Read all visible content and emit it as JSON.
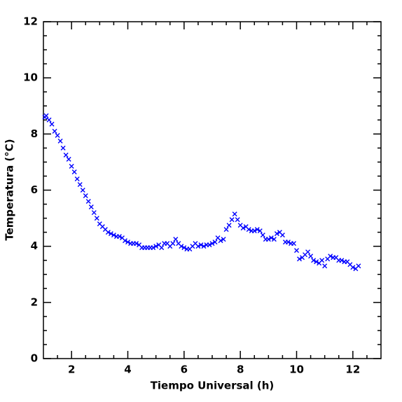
{
  "chart_data": {
    "type": "scatter",
    "xlabel": "Tiempo Universal (h)",
    "ylabel": "Temperatura (°C)",
    "xlim": [
      1,
      13
    ],
    "ylim": [
      0,
      12
    ],
    "xticks": [
      2,
      4,
      6,
      8,
      10,
      12
    ],
    "yticks": [
      0,
      2,
      4,
      6,
      8,
      10,
      12
    ],
    "xminorticks": [
      1.5,
      2.5,
      3,
      3.5,
      4.5,
      5,
      5.5,
      6.5,
      7,
      7.5,
      8.5,
      9,
      9.5,
      10.5,
      11,
      11.5,
      12.5
    ],
    "yminorticks": [
      0.5,
      1,
      1.5,
      2.5,
      3,
      3.5,
      4.5,
      5,
      5.5,
      6.5,
      7,
      7.5,
      8.5,
      9,
      9.5,
      10.5,
      11,
      11.5
    ],
    "grid": false,
    "series": [
      {
        "color": "#0000ff",
        "x": [
          1.05,
          1.1,
          1.2,
          1.3,
          1.4,
          1.5,
          1.6,
          1.7,
          1.8,
          1.9,
          2.0,
          2.1,
          2.2,
          2.3,
          2.4,
          2.5,
          2.6,
          2.7,
          2.8,
          2.9,
          3.0,
          3.1,
          3.2,
          3.3,
          3.4,
          3.5,
          3.6,
          3.7,
          3.8,
          3.9,
          4.0,
          4.1,
          4.2,
          4.3,
          4.4,
          4.5,
          4.6,
          4.7,
          4.8,
          4.9,
          5.0,
          5.1,
          5.2,
          5.3,
          5.4,
          5.5,
          5.6,
          5.7,
          5.8,
          5.9,
          6.0,
          6.1,
          6.2,
          6.3,
          6.4,
          6.5,
          6.6,
          6.7,
          6.8,
          6.9,
          7.0,
          7.1,
          7.2,
          7.3,
          7.4,
          7.5,
          7.6,
          7.7,
          7.8,
          7.9,
          8.0,
          8.1,
          8.2,
          8.3,
          8.4,
          8.5,
          8.6,
          8.7,
          8.8,
          8.9,
          9.0,
          9.1,
          9.2,
          9.3,
          9.4,
          9.5,
          9.6,
          9.7,
          9.8,
          9.9,
          10.0,
          10.1,
          10.2,
          10.3,
          10.4,
          10.5,
          10.6,
          10.7,
          10.8,
          10.9,
          11.0,
          11.1,
          11.2,
          11.3,
          11.4,
          11.5,
          11.6,
          11.7,
          11.8,
          11.9,
          12.0,
          12.1,
          12.2
        ],
        "values": [
          8.6,
          8.65,
          8.5,
          8.35,
          8.1,
          7.95,
          7.75,
          7.5,
          7.25,
          7.1,
          6.85,
          6.65,
          6.4,
          6.2,
          6.0,
          5.8,
          5.6,
          5.4,
          5.2,
          5.0,
          4.8,
          4.7,
          4.6,
          4.5,
          4.45,
          4.4,
          4.35,
          4.35,
          4.3,
          4.2,
          4.15,
          4.1,
          4.1,
          4.1,
          4.05,
          3.95,
          3.95,
          3.95,
          3.95,
          3.95,
          4.0,
          4.05,
          3.95,
          4.1,
          4.1,
          4.0,
          4.1,
          4.25,
          4.1,
          4.0,
          3.95,
          3.9,
          3.9,
          4.0,
          4.1,
          4.0,
          4.05,
          4.0,
          4.05,
          4.05,
          4.1,
          4.15,
          4.3,
          4.2,
          4.25,
          4.6,
          4.75,
          4.95,
          5.15,
          4.95,
          4.75,
          4.65,
          4.7,
          4.6,
          4.55,
          4.55,
          4.6,
          4.55,
          4.4,
          4.25,
          4.25,
          4.3,
          4.25,
          4.45,
          4.5,
          4.4,
          4.15,
          4.15,
          4.1,
          4.1,
          3.85,
          3.55,
          3.6,
          3.7,
          3.8,
          3.65,
          3.5,
          3.45,
          3.4,
          3.5,
          3.3,
          3.55,
          3.65,
          3.6,
          3.6,
          3.5,
          3.5,
          3.45,
          3.45,
          3.35,
          3.25,
          3.2,
          3.3
        ]
      }
    ]
  }
}
